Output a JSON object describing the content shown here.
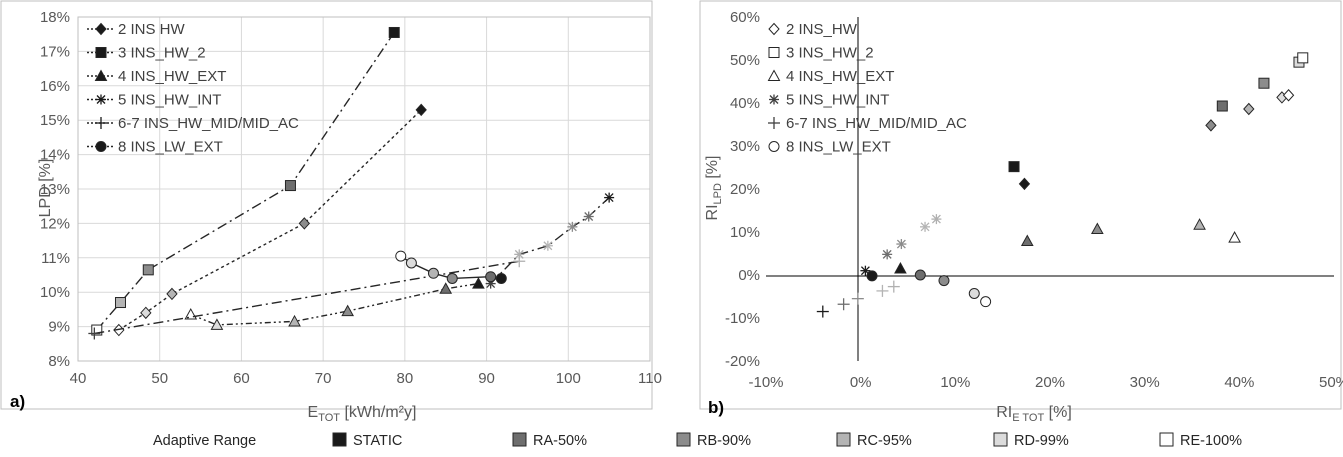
{
  "legend_bottom": {
    "title": "Adaptive Range",
    "items": [
      {
        "label": "STATIC",
        "color": "#1a1a1a"
      },
      {
        "label": "RA-50%",
        "color": "#6e6e6e"
      },
      {
        "label": "RB-90%",
        "color": "#8c8c8c"
      },
      {
        "label": "RC-95%",
        "color": "#b4b4b4"
      },
      {
        "label": "RD-99%",
        "color": "#dcdcdc"
      },
      {
        "label": "RE-100%",
        "color": "#ffffff"
      }
    ]
  },
  "chart_data": [
    {
      "type": "line",
      "panel_label": "a)",
      "xlabel_main": "E",
      "xlabel_sub": "TOT",
      "xlabel_rest": " [kWh/m²y]",
      "ylabel": "LPD [%]",
      "xlim": [
        40,
        110
      ],
      "ylim": [
        8,
        18
      ],
      "xticks": [
        "40",
        "50",
        "60",
        "70",
        "80",
        "90",
        "100",
        "110"
      ],
      "yticks": [
        "8%",
        "9%",
        "10%",
        "11%",
        "12%",
        "13%",
        "14%",
        "15%",
        "16%",
        "17%",
        "18%"
      ],
      "grid": true,
      "legend": "top-left",
      "series": [
        {
          "name": "2 INS HW",
          "marker": "diamond",
          "dash": "3 3",
          "points": [
            [
              45.0,
              8.9
            ],
            [
              48.3,
              9.4
            ],
            [
              51.5,
              9.95
            ],
            [
              67.7,
              12.0
            ],
            [
              82.0,
              15.3
            ]
          ],
          "fills": [
            "RE",
            "RD",
            "RC",
            "RB",
            "STATIC"
          ]
        },
        {
          "name": "3 INS_HW_2",
          "marker": "square",
          "dash": "10 4 2 4",
          "points": [
            [
              42.3,
              8.9
            ],
            [
              45.2,
              9.7
            ],
            [
              48.6,
              10.65
            ],
            [
              66.0,
              13.1
            ],
            [
              78.7,
              17.55
            ]
          ],
          "fills": [
            "RE",
            "RC",
            "RB",
            "RA",
            "STATIC"
          ]
        },
        {
          "name": "4 INS_HW_EXT",
          "marker": "triangle",
          "dash": "6 3 2 3 2 3",
          "points": [
            [
              53.8,
              9.35
            ],
            [
              57.0,
              9.05
            ],
            [
              66.5,
              9.15
            ],
            [
              73.0,
              9.45
            ],
            [
              85.0,
              10.1
            ],
            [
              89.0,
              10.25
            ]
          ],
          "fills": [
            "RE",
            "RD",
            "RC",
            "RB",
            "RA",
            "STATIC"
          ]
        },
        {
          "name": "5 INS_HW_INT",
          "marker": "asterisk",
          "dash": "10 4 2 4",
          "points": [
            [
              90.5,
              10.25
            ],
            [
              94.0,
              11.1
            ],
            [
              97.5,
              11.35
            ],
            [
              100.5,
              11.9
            ],
            [
              102.5,
              12.2
            ],
            [
              105.0,
              12.75
            ]
          ],
          "fills": [
            "RE",
            "RD",
            "RC",
            "RB",
            "RA",
            "STATIC"
          ]
        },
        {
          "name": "6-7 INS_HW_MID/MID_AC",
          "marker": "plus",
          "dash": "10 4 2 4",
          "points": [
            [
              42.0,
              8.8
            ],
            [
              94.0,
              10.9
            ]
          ],
          "fills": [
            "RE",
            "RD"
          ]
        },
        {
          "name": "8 INS_LW_EXT",
          "marker": "circle",
          "dash": "none",
          "points": [
            [
              79.5,
              11.05
            ],
            [
              80.8,
              10.85
            ],
            [
              83.5,
              10.55
            ],
            [
              85.8,
              10.4
            ],
            [
              90.5,
              10.45
            ],
            [
              91.8,
              10.4
            ]
          ],
          "fills": [
            "RE",
            "RD",
            "RC",
            "RB",
            "RA",
            "STATIC"
          ]
        }
      ]
    },
    {
      "type": "scatter",
      "panel_label": "b)",
      "xlabel_main": "RI",
      "xlabel_sub": "E TOT",
      "xlabel_rest": " [%]",
      "ylabel_main": "RI",
      "ylabel_sub": "LPD",
      "ylabel_rest": " [%]",
      "xlim": [
        -10,
        50
      ],
      "ylim": [
        -20,
        60
      ],
      "xticks": [
        "-10%",
        "0%",
        "10%",
        "20%",
        "30%",
        "40%",
        "50%"
      ],
      "yticks": [
        "-20%",
        "-10%",
        "0%",
        "10%",
        "20%",
        "30%",
        "40%",
        "50%",
        "60%"
      ],
      "grid": false,
      "legend": "top-left",
      "series": [
        {
          "name": "2 INS_HW",
          "marker": "diamond",
          "points": [
            [
              17.3,
              21.2
            ],
            [
              37.0,
              34.8
            ],
            [
              41.0,
              38.6
            ],
            [
              44.5,
              41.3
            ],
            [
              45.2,
              41.8
            ]
          ],
          "fills": [
            "STATIC",
            "RB",
            "RC",
            "RD",
            "RE"
          ]
        },
        {
          "name": "3 INS_HW_2",
          "marker": "square",
          "points": [
            [
              16.2,
              25.2
            ],
            [
              38.2,
              39.3
            ],
            [
              42.6,
              44.6
            ],
            [
              46.3,
              49.5
            ],
            [
              46.7,
              50.5
            ]
          ],
          "fills": [
            "STATIC",
            "RA",
            "RB",
            "RD",
            "RE"
          ]
        },
        {
          "name": "4 INS_HW_EXT",
          "marker": "triangle",
          "points": [
            [
              4.2,
              1.5
            ],
            [
              17.6,
              7.9
            ],
            [
              25.0,
              10.7
            ],
            [
              35.8,
              11.7
            ],
            [
              39.5,
              8.7
            ]
          ],
          "fills": [
            "STATIC",
            "RA",
            "RB",
            "RC",
            "RE"
          ]
        },
        {
          "name": "5 INS_HW_INT",
          "marker": "asterisk",
          "points": [
            [
              0.5,
              1.0
            ],
            [
              2.8,
              4.8
            ],
            [
              4.3,
              7.2
            ],
            [
              6.8,
              11.2
            ],
            [
              8.0,
              13.0
            ]
          ],
          "fills": [
            "STATIC",
            "RA",
            "RB",
            "RC",
            "RD"
          ]
        },
        {
          "name": "6-7 INS_HW_MID/MID_AC",
          "marker": "plus",
          "points": [
            [
              -4.0,
              -8.5
            ],
            [
              -1.8,
              -6.8
            ],
            [
              -0.3,
              -5.5
            ],
            [
              2.3,
              -3.7
            ],
            [
              3.5,
              -2.7
            ]
          ],
          "fills": [
            "STATIC",
            "RA",
            "RB",
            "RC",
            "RD"
          ]
        },
        {
          "name": "8 INS_LW_EXT",
          "marker": "circle",
          "points": [
            [
              1.2,
              -0.2
            ],
            [
              6.3,
              0.0
            ],
            [
              8.8,
              -1.3
            ],
            [
              12.0,
              -4.3
            ],
            [
              13.2,
              -6.2
            ]
          ],
          "fills": [
            "STATIC",
            "RA",
            "RB",
            "RD",
            "RE"
          ]
        }
      ]
    }
  ]
}
